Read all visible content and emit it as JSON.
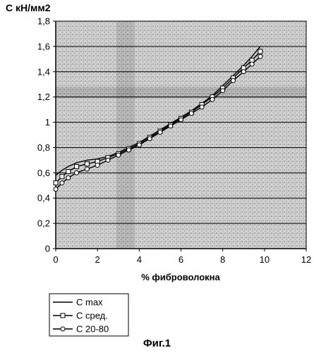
{
  "chart_data": {
    "type": "line",
    "title": "",
    "ylabel": "С  кН/мм2",
    "xlabel": "% фиброволокна",
    "xlim": [
      0,
      12
    ],
    "ylim": [
      0,
      1.8
    ],
    "x_ticks": [
      0,
      2,
      4,
      6,
      8,
      10,
      12
    ],
    "y_ticks": [
      0,
      0.2,
      0.4,
      0.6,
      0.8,
      1,
      1.2,
      1.4,
      1.6,
      1.8
    ],
    "x_tick_labels": [
      "0",
      "2",
      "4",
      "6",
      "8",
      "10",
      "12"
    ],
    "y_tick_labels": [
      "0",
      "0,2",
      "0,4",
      "0,6",
      "0,8",
      "1",
      "1,2",
      "1,4",
      "1,6",
      "1,8"
    ],
    "grid": "horizontal",
    "legend_position": "bottom-left",
    "series": [
      {
        "name": "С max",
        "marker": "none",
        "x": [
          0,
          0.3,
          0.6,
          1,
          1.5,
          2,
          2.5,
          3,
          3.5,
          4,
          4.5,
          5,
          5.5,
          6,
          6.5,
          7,
          7.5,
          8,
          8.5,
          9,
          9.4,
          9.8
        ],
        "y": [
          0.58,
          0.62,
          0.65,
          0.68,
          0.7,
          0.71,
          0.73,
          0.76,
          0.8,
          0.84,
          0.89,
          0.94,
          0.99,
          1.04,
          1.09,
          1.15,
          1.21,
          1.29,
          1.37,
          1.45,
          1.52,
          1.6
        ]
      },
      {
        "name": "С сред.",
        "marker": "square",
        "x": [
          0,
          0.3,
          0.6,
          1,
          1.5,
          2,
          2.5,
          3,
          3.5,
          4,
          4.5,
          5,
          5.5,
          6,
          6.5,
          7,
          7.5,
          8,
          8.5,
          9,
          9.4,
          9.8
        ],
        "y": [
          0.52,
          0.57,
          0.61,
          0.65,
          0.67,
          0.69,
          0.72,
          0.75,
          0.79,
          0.83,
          0.88,
          0.93,
          0.98,
          1.03,
          1.08,
          1.14,
          1.2,
          1.27,
          1.35,
          1.43,
          1.49,
          1.56
        ]
      },
      {
        "name": "С 20-80",
        "marker": "circle",
        "x": [
          0,
          0.3,
          0.6,
          1,
          1.5,
          2,
          2.5,
          3,
          3.5,
          4,
          4.5,
          5,
          5.5,
          6,
          6.5,
          7,
          7.5,
          8,
          8.5,
          9,
          9.4,
          9.8
        ],
        "y": [
          0.47,
          0.52,
          0.56,
          0.6,
          0.63,
          0.66,
          0.7,
          0.74,
          0.78,
          0.82,
          0.87,
          0.92,
          0.97,
          1.02,
          1.07,
          1.12,
          1.18,
          1.25,
          1.33,
          1.4,
          1.46,
          1.52
        ]
      }
    ]
  },
  "caption": "Фиг.1"
}
